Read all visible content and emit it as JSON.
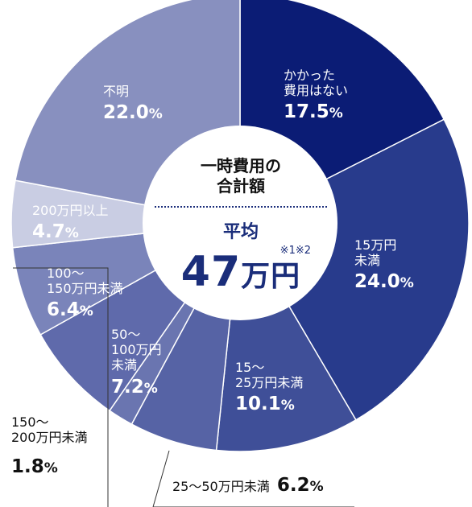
{
  "chart_data": {
    "type": "pie",
    "slices": [
      {
        "label": "かかった\n費用はない",
        "value": 17.5,
        "value_label": "17.5%",
        "color": "#0b1c75"
      },
      {
        "label": "15万円\n未満",
        "value": 24.0,
        "value_label": "24.0%",
        "color": "#283b8c"
      },
      {
        "label": "15～\n25万円未満",
        "value": 10.1,
        "value_label": "10.1%",
        "color": "#3f4f98"
      },
      {
        "label": "25～50万円未満",
        "value": 6.2,
        "value_label": "6.2%",
        "color": "#5663a5"
      },
      {
        "label": "150～\n200万円未満",
        "value": 1.8,
        "value_label": "1.8%",
        "color": "#6a75b0"
      },
      {
        "label": "50～\n100万円\n未満",
        "value": 7.2,
        "value_label": "7.2%",
        "color": "#5f6aab"
      },
      {
        "label": "100～\n150万円未満",
        "value": 6.4,
        "value_label": "6.4%",
        "color": "#7a84ba"
      },
      {
        "label": "200万円以上",
        "value": 4.7,
        "value_label": "4.7%",
        "color": "#c9cde3"
      },
      {
        "label": "不明",
        "value": 22.0,
        "value_label": "22.0%",
        "color": "#8890bf"
      }
    ],
    "center": {
      "title": "一時費用の\n合計額",
      "sub": "平均",
      "note": "※1※2",
      "value": "47",
      "unit": "万円"
    }
  }
}
